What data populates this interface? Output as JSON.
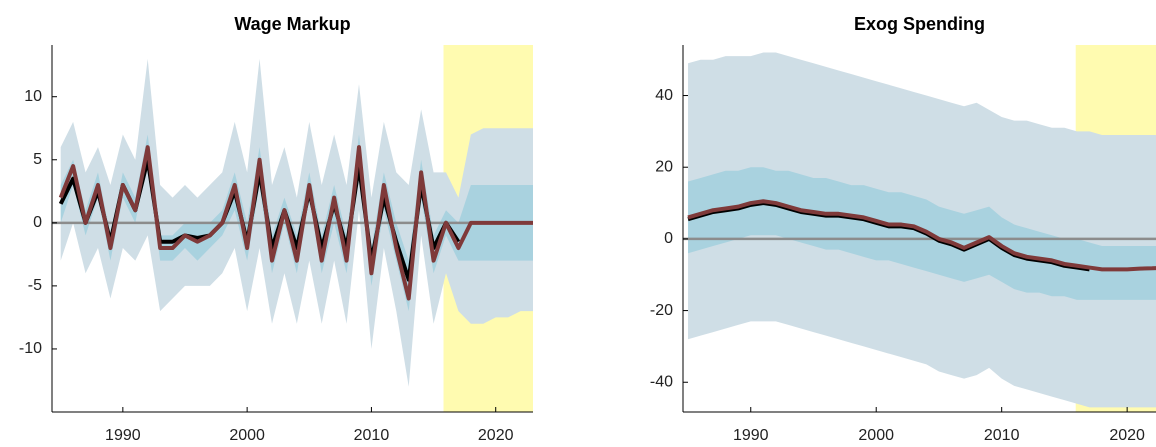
{
  "chart_data": [
    {
      "type": "line",
      "title": "Wage Markup",
      "x": [
        1985,
        1986,
        1987,
        1988,
        1989,
        1990,
        1991,
        1992,
        1993,
        1994,
        1995,
        1996,
        1997,
        1998,
        1999,
        2000,
        2001,
        2002,
        2003,
        2004,
        2005,
        2006,
        2007,
        2008,
        2009,
        2010,
        2011,
        2012,
        2013,
        2014,
        2015,
        2016,
        2017,
        2018,
        2019,
        2020,
        2021,
        2022,
        2023
      ],
      "xlim": [
        1984.3,
        2023
      ],
      "xticks": [
        1990,
        2000,
        2010,
        2020
      ],
      "ylim": [
        -15,
        14.1
      ],
      "yticks": [
        -10,
        -5,
        0,
        5,
        10
      ],
      "shaded_xrange": [
        2015.8,
        2023
      ],
      "shade_color": "#fffbb0",
      "hline": 0,
      "hline_color": "#8c8c8c",
      "bands": [
        {
          "color": "#cfdee6",
          "upper": [
            6,
            8,
            4,
            6,
            3,
            7,
            5,
            13,
            3,
            2,
            3,
            2,
            3,
            4,
            8,
            4,
            13,
            3,
            6,
            2,
            8,
            3,
            7,
            3,
            11,
            2,
            8,
            4,
            3,
            9,
            4,
            4,
            2,
            7,
            7.5,
            7.5,
            7.5,
            7.5,
            7.5
          ],
          "lower": [
            -3,
            0,
            -4,
            -2,
            -6,
            -2,
            -3,
            -1,
            -7,
            -6,
            -5,
            -5,
            -5,
            -4,
            -2,
            -7,
            -2,
            -8,
            -4,
            -8,
            -3,
            -8,
            -3,
            -8,
            1,
            -10,
            -2,
            -7,
            -13,
            -1,
            -8,
            -4,
            -7,
            -8,
            -8,
            -7.5,
            -7.5,
            -7,
            -7
          ]
        },
        {
          "color": "#a9d2df",
          "upper": [
            3,
            5,
            1,
            4,
            -1,
            4,
            2,
            7,
            -1,
            -1,
            0,
            0,
            0,
            1,
            4,
            0,
            6,
            -1,
            2,
            -1,
            4,
            -1,
            3,
            -1,
            7,
            -2,
            4,
            0,
            -3,
            5,
            -1,
            1,
            0,
            3,
            3,
            3,
            3,
            3,
            3
          ],
          "lower": [
            0,
            3,
            -1,
            2,
            -3,
            2,
            0,
            5,
            -3,
            -3,
            -2,
            -3,
            -2,
            -1,
            1,
            -3,
            3,
            -4,
            0,
            -4,
            2,
            -4,
            0,
            -4,
            4,
            -5,
            1,
            -3,
            -7,
            2,
            -4,
            -1,
            -3,
            -3,
            -3,
            -3,
            -3,
            -3,
            -3
          ]
        }
      ],
      "series": [
        {
          "color": "#000000",
          "values": [
            1.5,
            3.5,
            0,
            2.5,
            -1.5,
            3,
            1,
            5,
            -1.5,
            -1.5,
            -1,
            -1.2,
            -1,
            0,
            2.5,
            -1.5,
            4,
            -2,
            1,
            -2,
            2.5,
            -2,
            1.5,
            -2,
            4.5,
            -3,
            2,
            -1.5,
            -4.5,
            3,
            -2,
            0,
            -1.5,
            null,
            null,
            null,
            null,
            null,
            null
          ]
        },
        {
          "color": "#7f3a3a",
          "values": [
            2,
            4.5,
            0,
            3,
            -2,
            3,
            1,
            6,
            -2,
            -2,
            -1,
            -1.5,
            -1,
            0,
            3,
            -2,
            5,
            -3,
            1,
            -3,
            3,
            -3,
            2,
            -3,
            6,
            -4,
            3,
            -2,
            -6,
            4,
            -3,
            0,
            -2,
            0,
            0,
            0,
            0,
            0,
            0
          ]
        }
      ]
    },
    {
      "type": "line",
      "title": "Exog Spending",
      "x": [
        1985,
        1986,
        1987,
        1988,
        1989,
        1990,
        1991,
        1992,
        1993,
        1994,
        1995,
        1996,
        1997,
        1998,
        1999,
        2000,
        2001,
        2002,
        2003,
        2004,
        2005,
        2006,
        2007,
        2008,
        2009,
        2010,
        2011,
        2012,
        2013,
        2014,
        2015,
        2016,
        2017,
        2018,
        2019,
        2020,
        2021,
        2022,
        2023
      ],
      "xlim": [
        1984.6,
        2022.3
      ],
      "xticks": [
        1990,
        2000,
        2010,
        2020
      ],
      "ylim": [
        -48.3,
        54.1
      ],
      "yticks": [
        -40,
        -20,
        0,
        20,
        40
      ],
      "shaded_xrange": [
        2015.9,
        2022.3
      ],
      "shade_color": "#fffbb0",
      "hline": 0,
      "hline_color": "#8c8c8c",
      "bands": [
        {
          "color": "#cfdee6",
          "upper": [
            49,
            50,
            50,
            51,
            51,
            51,
            52,
            52,
            51,
            50,
            49,
            48,
            47,
            46,
            45,
            44,
            43,
            42,
            41,
            40,
            39,
            38,
            37,
            38,
            36,
            34,
            33,
            33,
            32,
            31,
            31,
            30,
            30,
            29,
            29,
            29,
            29,
            29,
            29
          ],
          "lower": [
            -28,
            -27,
            -26,
            -25,
            -24,
            -23,
            -23,
            -23,
            -24,
            -25,
            -26,
            -27,
            -28,
            -29,
            -30,
            -31,
            -32,
            -33,
            -34,
            -35,
            -37,
            -38,
            -39,
            -38,
            -36,
            -39,
            -41,
            -42,
            -43,
            -44,
            -45,
            -46,
            -47,
            -47,
            -47,
            -47,
            -47,
            -47,
            -47
          ]
        },
        {
          "color": "#a9d2df",
          "upper": [
            16,
            17,
            18,
            19,
            19,
            20,
            20,
            19,
            19,
            18,
            17,
            17,
            16,
            15,
            15,
            14,
            13,
            13,
            12,
            11,
            9,
            8,
            7,
            8,
            9,
            6,
            4,
            3,
            2,
            1,
            0,
            0,
            -1,
            -2,
            -2,
            -2,
            -2,
            -2,
            -2
          ],
          "lower": [
            -4,
            -3,
            -2,
            -1,
            0,
            1,
            1,
            1,
            0,
            -1,
            -2,
            -3,
            -3,
            -4,
            -5,
            -6,
            -6,
            -7,
            -8,
            -9,
            -10,
            -11,
            -12,
            -11,
            -10,
            -12,
            -14,
            -15,
            -15,
            -16,
            -16,
            -17,
            -17,
            -17,
            -17,
            -17,
            -17,
            -17,
            -17
          ]
        }
      ],
      "series": [
        {
          "color": "#000000",
          "values": [
            5.5,
            6.5,
            7.5,
            8,
            8.5,
            9.5,
            10,
            9.5,
            8.5,
            7.5,
            7,
            6.5,
            6.5,
            6,
            5.5,
            4.5,
            3.5,
            3.5,
            3,
            1.5,
            -0.5,
            -1.5,
            -3,
            -1.5,
            0,
            -2.5,
            -4.5,
            -5.5,
            -6,
            -6.5,
            -7.5,
            -8,
            -8.5,
            null,
            null,
            null,
            null,
            null,
            null
          ]
        },
        {
          "color": "#7f3a3a",
          "values": [
            6,
            7,
            8,
            8.5,
            9,
            10,
            10.5,
            10,
            9,
            8,
            7.5,
            7,
            7,
            6.5,
            6,
            5,
            4,
            4,
            3.5,
            2,
            0,
            -1,
            -2.5,
            -1,
            0.5,
            -2,
            -4,
            -5,
            -5.5,
            -6,
            -7,
            -7.5,
            -8,
            -8.5,
            -8.5,
            -8.5,
            -8.3,
            -8.2,
            -8
          ]
        }
      ]
    }
  ]
}
